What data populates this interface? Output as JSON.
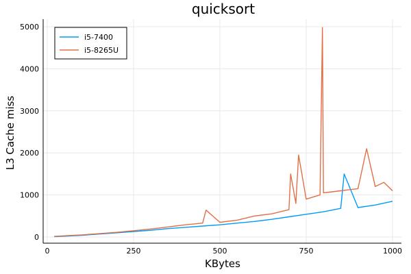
{
  "chart_data": {
    "type": "line",
    "title": "quicksort",
    "xlabel": "KBytes",
    "ylabel": "L3 Cache miss",
    "xlim": [
      0,
      1000
    ],
    "ylim": [
      0,
      5000
    ],
    "xticks": [
      0,
      250,
      500,
      750,
      1000
    ],
    "yticks": [
      0,
      1000,
      2000,
      3000,
      4000,
      5000
    ],
    "grid": true,
    "legend_position": "top-left",
    "series": [
      {
        "name": "i5-7400",
        "color": "#009AFA",
        "x": [
          20,
          50,
          100,
          150,
          200,
          250,
          300,
          350,
          400,
          450,
          500,
          550,
          600,
          650,
          700,
          750,
          800,
          850,
          860,
          900,
          950,
          1000
        ],
        "y": [
          10,
          20,
          40,
          70,
          100,
          130,
          160,
          200,
          230,
          260,
          290,
          330,
          370,
          420,
          480,
          540,
          600,
          680,
          1500,
          700,
          760,
          850
        ]
      },
      {
        "name": "i5-8265U",
        "color": "#E26F46",
        "x": [
          20,
          50,
          100,
          150,
          200,
          250,
          300,
          350,
          400,
          450,
          460,
          500,
          550,
          600,
          650,
          700,
          705,
          720,
          728,
          750,
          790,
          797,
          800,
          850,
          900,
          925,
          950,
          975,
          1000
        ],
        "y": [
          15,
          30,
          50,
          80,
          110,
          150,
          190,
          240,
          290,
          330,
          640,
          350,
          400,
          500,
          550,
          650,
          1500,
          800,
          1950,
          900,
          1000,
          4980,
          1050,
          1100,
          1150,
          2100,
          1200,
          1300,
          1100
        ]
      }
    ]
  }
}
